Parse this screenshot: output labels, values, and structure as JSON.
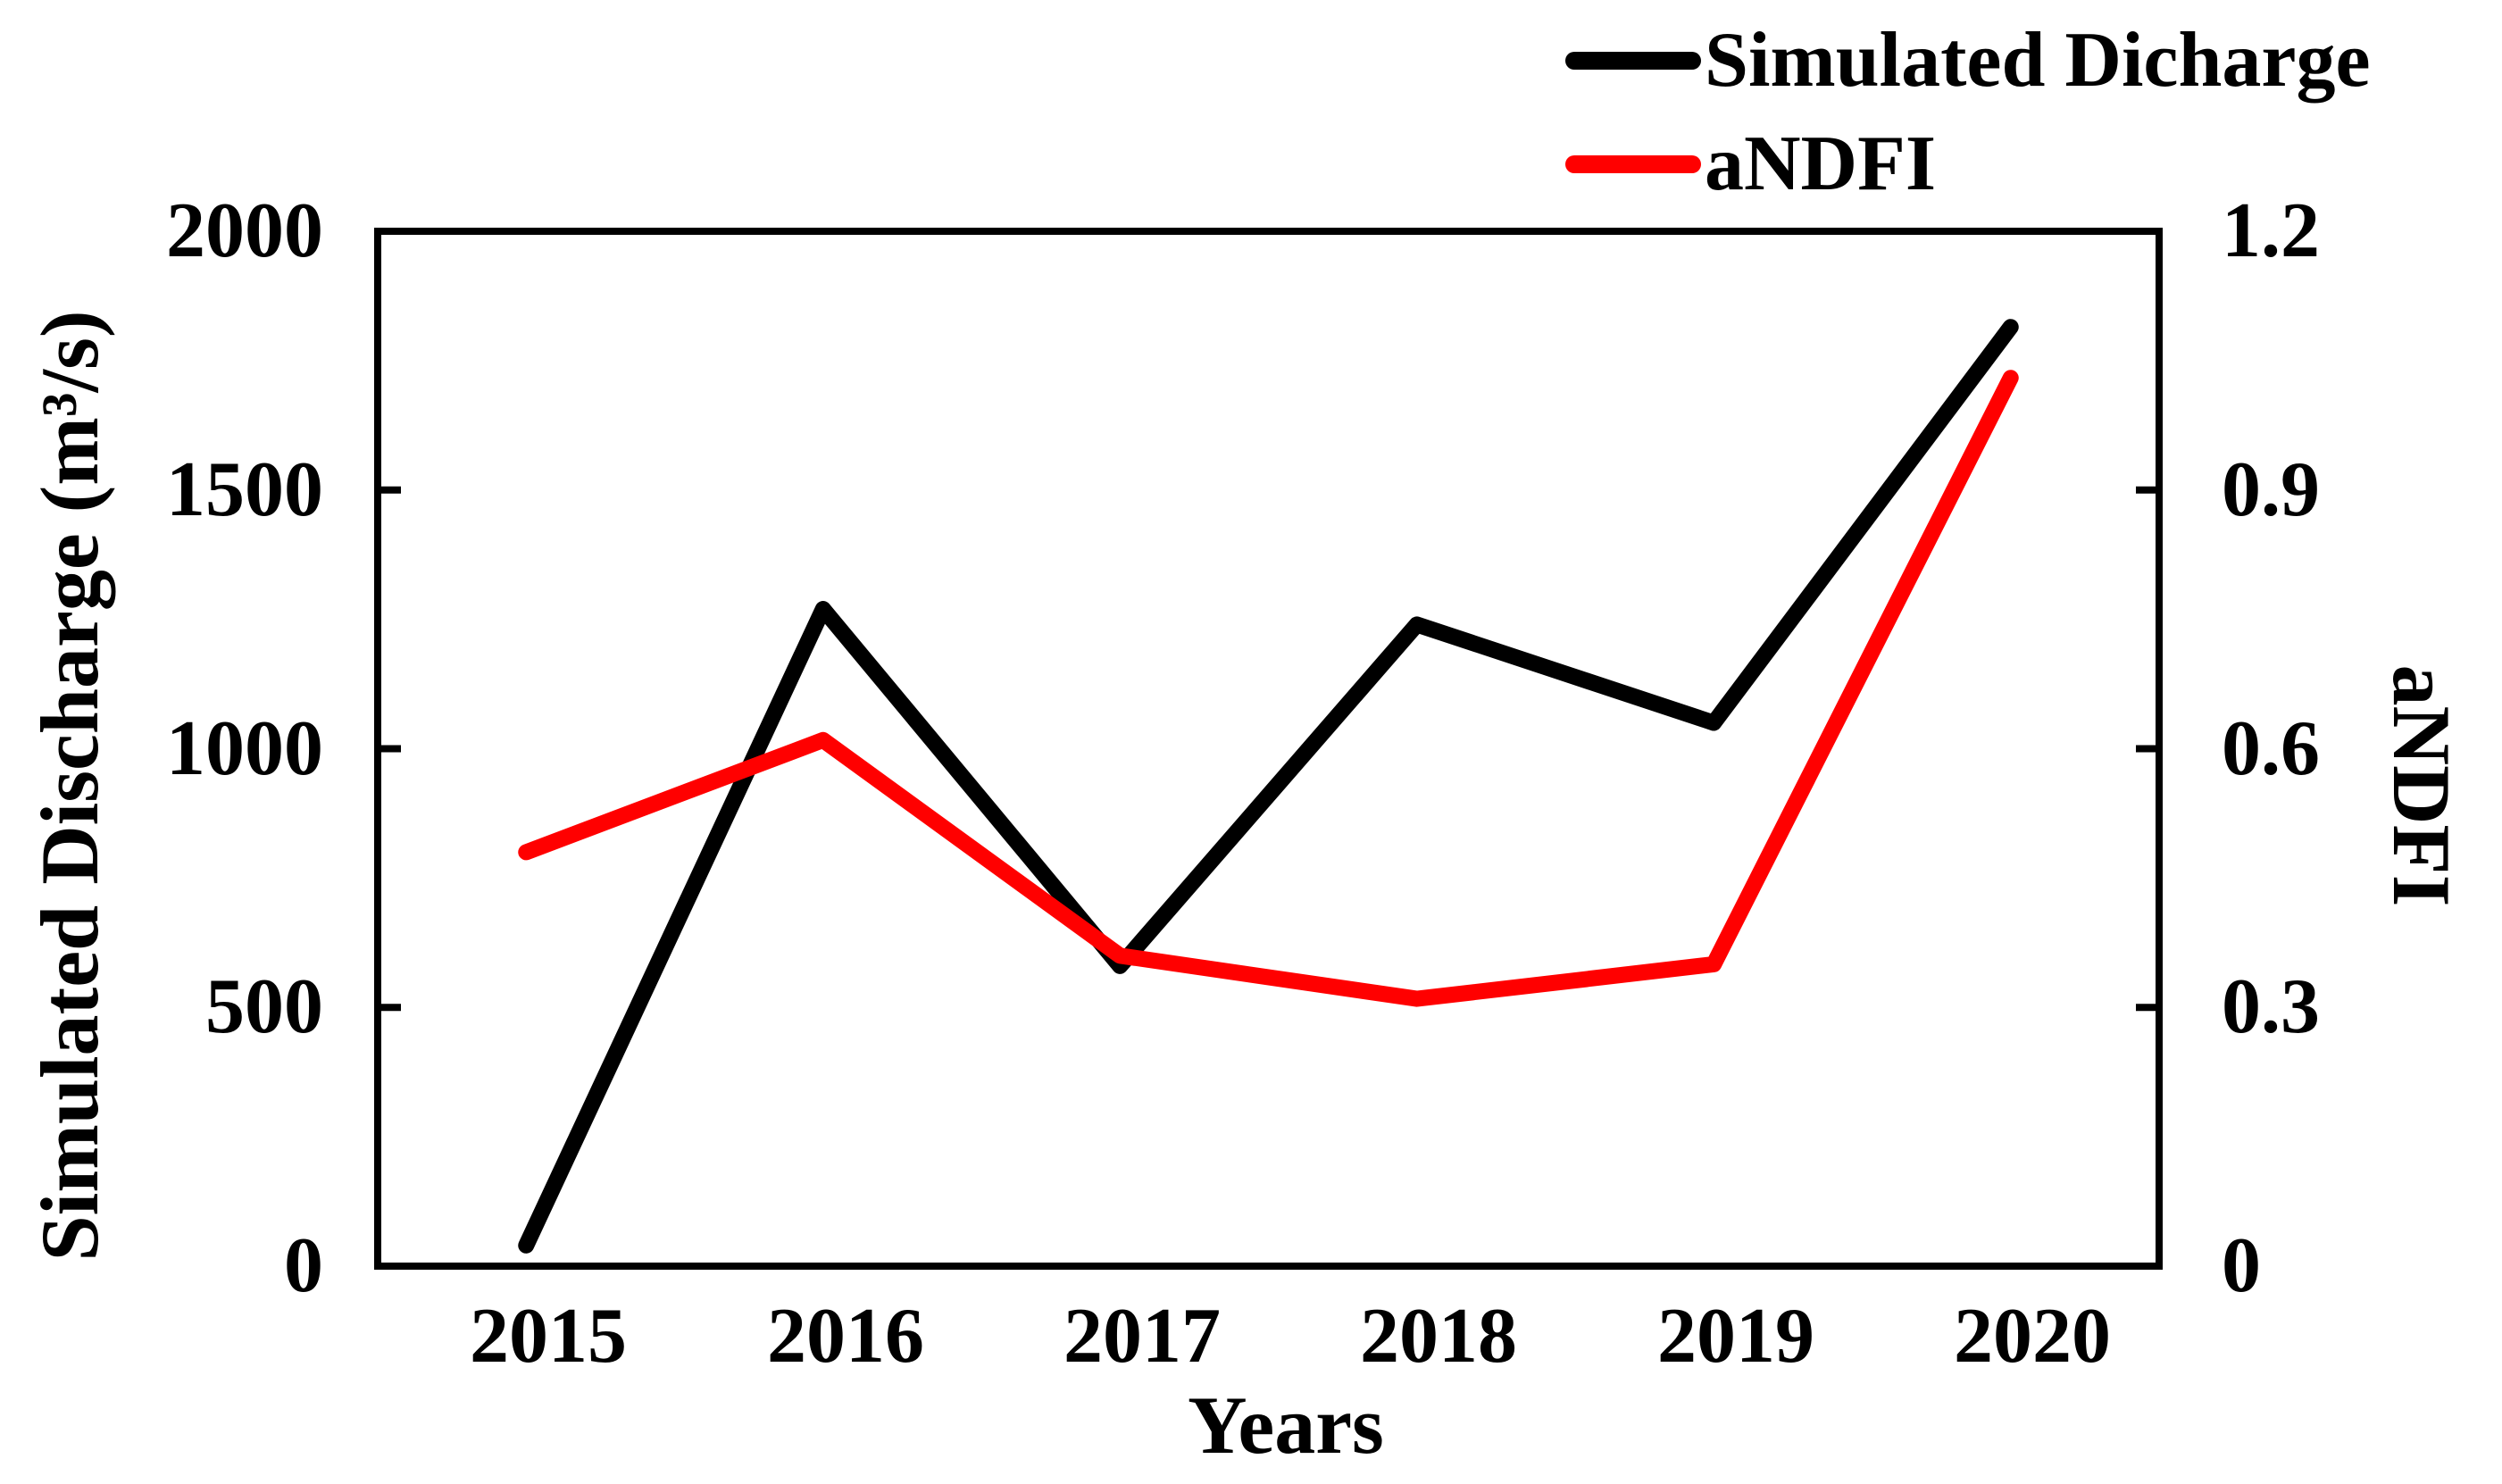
{
  "chart_data": {
    "type": "line",
    "title": "",
    "xlabel": "Years",
    "ylabel_left": "Simulated Discharge (m³/s)",
    "ylabel_right": "aNDFI",
    "categories": [
      "2015",
      "2016",
      "2017",
      "2018",
      "2019",
      "2020"
    ],
    "series": [
      {
        "name": "Simulated Dicharge",
        "axis": "left",
        "color": "#000000",
        "values": [
          40,
          1270,
          580,
          1240,
          1050,
          1815
        ]
      },
      {
        "name": "aNDFI",
        "axis": "right",
        "color": "#ff0000",
        "values": [
          0.48,
          0.61,
          0.36,
          0.31,
          0.35,
          1.03
        ]
      }
    ],
    "y_left": {
      "min": 0,
      "max": 2000,
      "ticks": [
        "2000",
        "1500",
        "1000",
        "500",
        "0"
      ]
    },
    "y_right": {
      "min": 0,
      "max": 1.2,
      "ticks": [
        "1.2",
        "0.9",
        "0.6",
        "0.3",
        "0"
      ]
    },
    "grid": false,
    "legend_position": "top-right",
    "frame_color": "#000000"
  }
}
